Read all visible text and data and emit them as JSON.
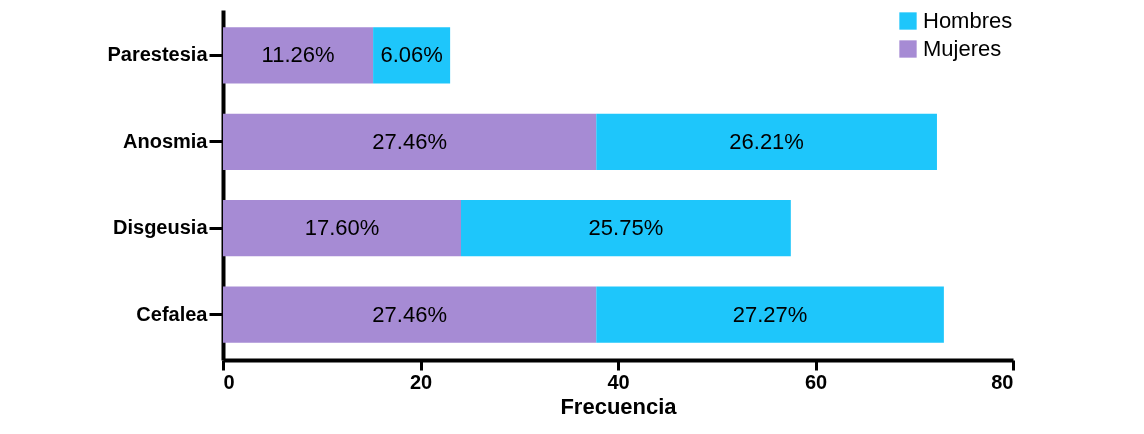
{
  "chart_data": {
    "type": "bar",
    "orientation": "horizontal",
    "stacked": true,
    "xlabel": "Frecuencia",
    "categories": [
      "Parestesia",
      "Anosmia",
      "Disgeusia",
      "Cefalea"
    ],
    "series": [
      {
        "name": "Mujeres",
        "color": "#a68bd4",
        "values": [
          15.2,
          37.8,
          24.1,
          37.8
        ]
      },
      {
        "name": "Hombres",
        "color": "#1ec6fb",
        "values": [
          7.8,
          34.5,
          33.4,
          35.2
        ]
      }
    ],
    "annotations": [
      "11.26%",
      "6.06%",
      "27.46%",
      "26.21%",
      "17.60%",
      "25.75%",
      "27.46%",
      "27.27%"
    ],
    "xlim": [
      0,
      80
    ],
    "xticks": [
      0,
      20,
      40,
      60,
      80
    ],
    "grid": false,
    "legend": "top right"
  }
}
